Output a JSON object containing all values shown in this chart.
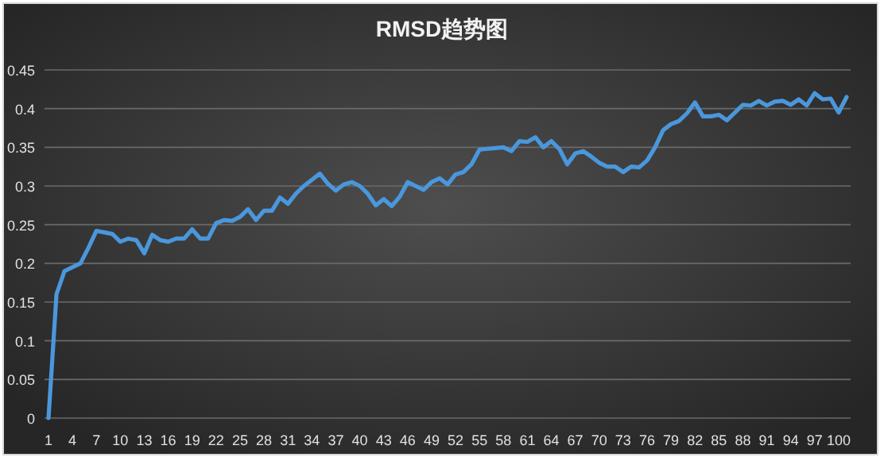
{
  "chart_data": {
    "type": "line",
    "title": "RMSD趋势图",
    "categories": [
      "1",
      null,
      null,
      "4",
      null,
      null,
      "7",
      null,
      null,
      "10",
      null,
      null,
      "13",
      null,
      null,
      "16",
      null,
      null,
      "19",
      null,
      null,
      "22",
      null,
      null,
      "25",
      null,
      null,
      "28",
      null,
      null,
      "31",
      null,
      null,
      "34",
      null,
      null,
      "37",
      null,
      null,
      "40",
      null,
      null,
      "43",
      null,
      null,
      "46",
      null,
      null,
      "49",
      null,
      null,
      "52",
      null,
      null,
      "55",
      null,
      null,
      "58",
      null,
      null,
      "61",
      null,
      null,
      "64",
      null,
      null,
      "67",
      null,
      null,
      "70",
      null,
      null,
      "73",
      null,
      null,
      "76",
      null,
      null,
      "79",
      null,
      null,
      "82",
      null,
      null,
      "85",
      null,
      null,
      "88",
      null,
      null,
      "91",
      null,
      null,
      "94",
      null,
      null,
      "97",
      null,
      null,
      "100",
      null
    ],
    "series": [
      {
        "color": "#4a97dc",
        "values": [
          0,
          0.16,
          0.19,
          0.195,
          0.2,
          0.22,
          0.242,
          0.24,
          0.238,
          0.228,
          0.232,
          0.23,
          0.213,
          0.237,
          0.23,
          0.228,
          0.232,
          0.232,
          0.244,
          0.232,
          0.232,
          0.252,
          0.256,
          0.255,
          0.26,
          0.27,
          0.256,
          0.268,
          0.268,
          0.285,
          0.277,
          0.29,
          0.3,
          0.308,
          0.316,
          0.303,
          0.294,
          0.302,
          0.305,
          0.3,
          0.29,
          0.275,
          0.283,
          0.274,
          0.286,
          0.305,
          0.3,
          0.295,
          0.305,
          0.31,
          0.302,
          0.315,
          0.318,
          0.328,
          0.347,
          0.348,
          0.349,
          0.35,
          0.345,
          0.358,
          0.357,
          0.363,
          0.35,
          0.358,
          0.348,
          0.328,
          0.342,
          0.345,
          0.338,
          0.33,
          0.325,
          0.325,
          0.318,
          0.325,
          0.324,
          0.333,
          0.35,
          0.372,
          0.38,
          0.384,
          0.394,
          0.408,
          0.39,
          0.39,
          0.392,
          0.385,
          0.395,
          0.405,
          0.404,
          0.41,
          0.404,
          0.409,
          0.41,
          0.405,
          0.412,
          0.404,
          0.42,
          0.412,
          0.413,
          0.395,
          0.415
        ]
      }
    ],
    "ylim": [
      0,
      0.45
    ],
    "yticks": [
      0,
      0.05,
      0.1,
      0.15,
      0.2,
      0.25,
      0.3,
      0.35,
      0.4,
      0.45
    ],
    "grid": "y"
  }
}
